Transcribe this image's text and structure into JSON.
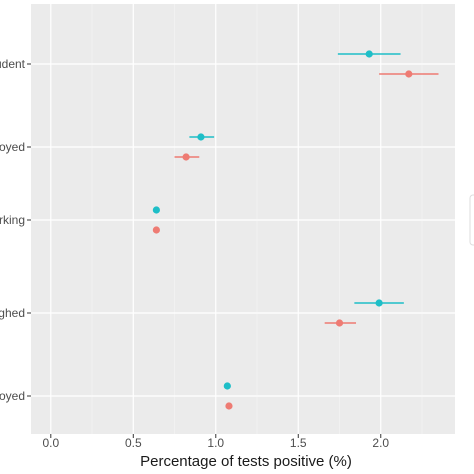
{
  "chart_data": {
    "type": "scatter",
    "orientation": "horizontal",
    "xlabel": "Percentage of tests positive (%)",
    "xlim": [
      -0.12,
      2.45
    ],
    "x_ticks": [
      0.0,
      0.5,
      1.0,
      1.5,
      2.0
    ],
    "x_tick_labels": [
      "0.0",
      "0.5",
      "1.0",
      "1.5",
      "2.0"
    ],
    "categories": [
      "udent",
      "oyed",
      "rking",
      "ghed",
      "oyed"
    ],
    "grid": true,
    "legend": "right (cut off)",
    "series": [
      {
        "color": "#1ebec7",
        "values": [
          1.93,
          0.91,
          0.64,
          1.99,
          1.07
        ],
        "ci_low": [
          1.74,
          0.84,
          0.64,
          1.84,
          1.05
        ],
        "ci_high": [
          2.12,
          0.99,
          0.65,
          2.14,
          1.09
        ]
      },
      {
        "color": "#ee7b73",
        "values": [
          2.17,
          0.82,
          0.64,
          1.75,
          1.08
        ],
        "ci_low": [
          1.99,
          0.75,
          0.64,
          1.66,
          1.06
        ],
        "ci_high": [
          2.35,
          0.9,
          0.65,
          1.85,
          1.1
        ]
      }
    ]
  }
}
